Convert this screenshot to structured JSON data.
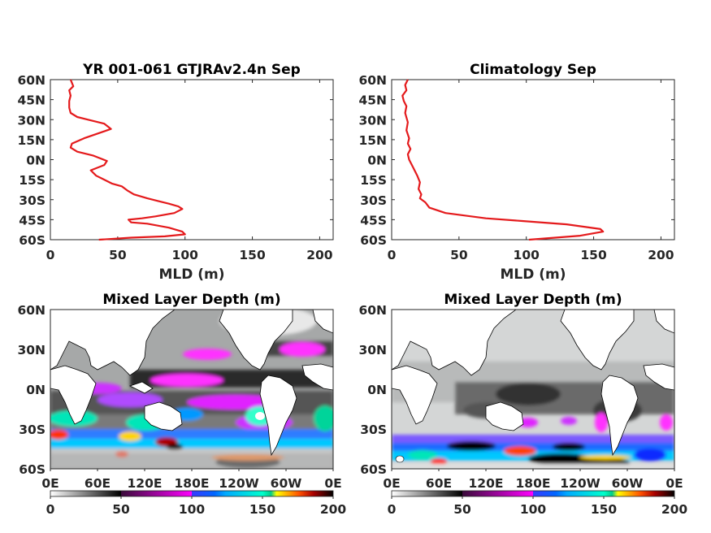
{
  "chart_data": [
    {
      "type": "line",
      "title": "YR 001-061 GTJRAv2.4n Sep",
      "xlabel": "MLD (m)",
      "ylabel": "",
      "xlim": [
        0,
        210
      ],
      "ylim": [
        -60,
        60
      ],
      "xticks": [
        "0",
        "50",
        "100",
        "150",
        "200"
      ],
      "yticks": [
        "60N",
        "45N",
        "30N",
        "15N",
        "0N",
        "15S",
        "30S",
        "45S",
        "60S"
      ],
      "color": "#e41a1c",
      "series": [
        {
          "x": [
            36,
            60,
            85,
            100,
            98,
            88,
            72,
            60,
            58,
            68,
            78,
            92,
            98,
            95,
            88,
            80,
            72,
            62,
            57,
            53,
            46,
            34,
            30,
            40,
            42,
            32,
            20,
            15,
            16,
            25,
            45,
            40,
            28,
            20,
            15,
            14,
            14,
            15,
            14,
            17,
            15
          ],
          "y": [
            -60,
            -58.5,
            -57.5,
            -56,
            -54,
            -51,
            -48,
            -47,
            -45,
            -44,
            -42.5,
            -40,
            -37,
            -35,
            -33,
            -31,
            -29,
            -26,
            -23,
            -20,
            -18,
            -12,
            -8,
            -4,
            -1,
            3,
            6,
            9,
            12,
            16,
            23,
            27,
            30,
            32,
            35,
            39,
            44,
            48,
            52,
            55,
            60
          ]
        }
      ]
    },
    {
      "type": "line",
      "title": "Climatology Sep",
      "xlabel": "MLD (m)",
      "ylabel": "",
      "xlim": [
        0,
        210
      ],
      "ylim": [
        -60,
        60
      ],
      "xticks": [
        "0",
        "50",
        "100",
        "150",
        "200"
      ],
      "yticks": [
        "60N",
        "45N",
        "30N",
        "15N",
        "0N",
        "15S",
        "30S",
        "45S",
        "60S"
      ],
      "color": "#e41a1c",
      "series": [
        {
          "x": [
            102,
            140,
            157,
            155,
            130,
            97,
            70,
            40,
            28,
            25,
            21,
            22,
            20,
            21,
            19,
            17,
            15,
            13,
            12,
            14,
            12,
            13,
            11,
            12,
            10,
            11,
            9,
            8,
            11,
            10,
            12
          ],
          "y": [
            -60,
            -57,
            -54,
            -52,
            -48.5,
            -46,
            -44,
            -40,
            -36,
            -32,
            -29,
            -26,
            -22,
            -17,
            -12,
            -8,
            -4,
            0,
            4,
            8,
            12,
            16,
            22,
            28,
            35,
            40,
            44,
            48,
            52,
            56,
            60
          ]
        }
      ]
    },
    {
      "type": "heatmap",
      "title": "Mixed Layer Depth (m)",
      "xticks": [
        "0E",
        "60E",
        "120E",
        "180E",
        "120W",
        "60W",
        "0E"
      ],
      "yticks": [
        "60N",
        "30N",
        "0N",
        "30S",
        "60S"
      ],
      "colorbar_ticks": [
        "0",
        "50",
        "100",
        "150",
        "200"
      ],
      "clim": [
        0,
        200
      ]
    },
    {
      "type": "heatmap",
      "title": "Mixed Layer Depth (m)",
      "xticks": [
        "0E",
        "60E",
        "120E",
        "180E",
        "120W",
        "60W",
        "0E"
      ],
      "yticks": [
        "60N",
        "30N",
        "0N",
        "30S",
        "60S"
      ],
      "colorbar_ticks": [
        "0",
        "50",
        "100",
        "150",
        "200"
      ],
      "clim": [
        0,
        200
      ]
    }
  ],
  "colormap": {
    "segments": [
      [
        "#ffffff",
        "#7a7a7a",
        "#000000"
      ],
      [
        "#3a0a3a",
        "#ff00ff"
      ],
      [
        "#3a3aff",
        "#00aaff"
      ],
      [
        "#00ffcc",
        "#00cc88"
      ],
      [
        "#ffff00",
        "#ff5000",
        "#aa0000"
      ],
      [
        "#3a0000",
        "#000000"
      ]
    ]
  },
  "map_colors": {
    "land": "#ffffff",
    "ocean_mid": "#a8aaaa"
  }
}
